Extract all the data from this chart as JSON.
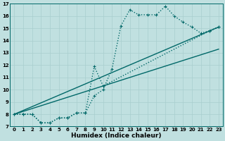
{
  "xlabel": "Humidex (Indice chaleur)",
  "bg_color": "#c0e0e0",
  "line_color": "#006868",
  "series": [
    {
      "x": [
        0,
        1,
        2,
        3,
        4,
        5,
        6,
        7,
        8,
        9,
        10,
        11,
        12,
        13,
        14,
        15,
        16,
        17,
        18,
        19,
        20,
        21,
        22,
        23
      ],
      "y": [
        8.0,
        8.0,
        8.0,
        7.3,
        7.3,
        7.7,
        7.7,
        8.1,
        8.1,
        9.5,
        10.0,
        11.7,
        15.2,
        16.5,
        16.1,
        16.1,
        16.1,
        16.8,
        16.0,
        15.5,
        15.1,
        14.6,
        14.8,
        15.1
      ],
      "linestyle": ":",
      "marker": "+",
      "markersize": 3,
      "linewidth": 1.0
    },
    {
      "x": [
        0,
        1,
        2,
        3,
        4,
        5,
        6,
        7,
        8,
        9,
        10,
        22,
        23
      ],
      "y": [
        8.0,
        8.0,
        8.0,
        7.3,
        7.3,
        7.7,
        7.7,
        8.1,
        8.1,
        11.9,
        10.3,
        14.8,
        15.1
      ],
      "linestyle": ":",
      "marker": "+",
      "markersize": 3,
      "linewidth": 1.0
    },
    {
      "x": [
        0,
        23
      ],
      "y": [
        8.0,
        15.1
      ],
      "linestyle": "-",
      "marker": null,
      "markersize": 0,
      "linewidth": 1.0
    },
    {
      "x": [
        0,
        23
      ],
      "y": [
        8.0,
        13.3
      ],
      "linestyle": "-",
      "marker": null,
      "markersize": 0,
      "linewidth": 1.0
    }
  ],
  "xlim": [
    0,
    23
  ],
  "ylim": [
    7,
    17
  ],
  "xticks": [
    0,
    1,
    2,
    3,
    4,
    5,
    6,
    7,
    8,
    9,
    10,
    11,
    12,
    13,
    14,
    15,
    16,
    17,
    18,
    19,
    20,
    21,
    22,
    23
  ],
  "yticks": [
    7,
    8,
    9,
    10,
    11,
    12,
    13,
    14,
    15,
    16,
    17
  ],
  "grid_color": "#a8cece",
  "tick_fontsize": 5,
  "xlabel_fontsize": 6.5
}
